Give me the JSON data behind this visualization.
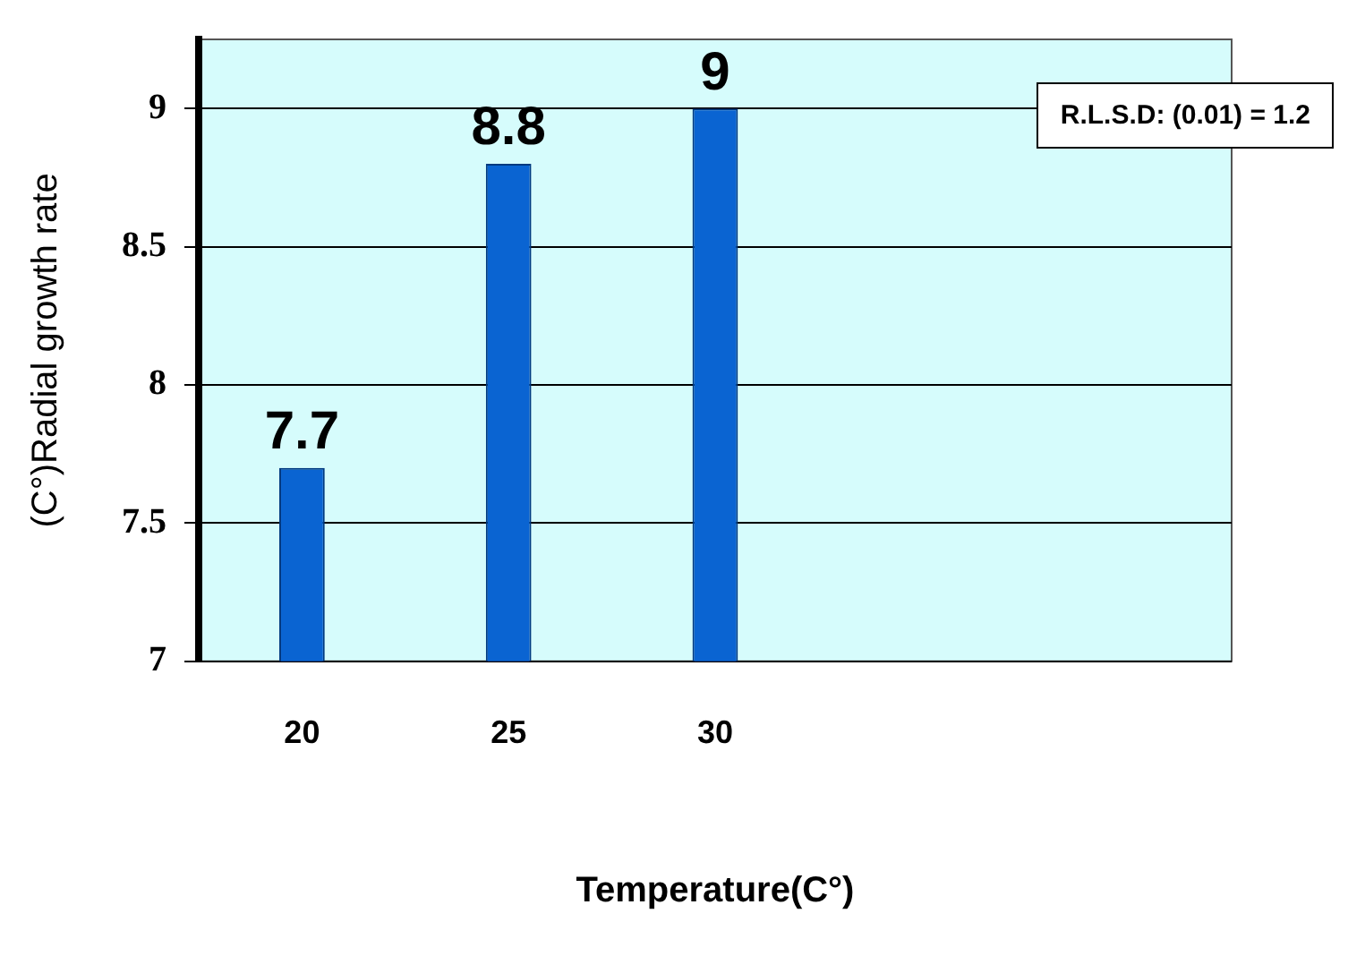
{
  "chart_data": {
    "type": "bar",
    "xlabel": "Temperature(C°)",
    "ylabel": "(C°)Radial growth rate",
    "categories": [
      "20",
      "25",
      "30",
      null,
      null
    ],
    "values": [
      7.7,
      8.8,
      9,
      null,
      null
    ],
    "color": "#0a64d2",
    "ylim": [
      7,
      9.25
    ],
    "yticks": [
      7,
      7.5,
      8,
      8.5,
      9
    ],
    "grid": "y",
    "data_labels": true,
    "annotations": [
      "R.L.S.D: (0.01) = 1.2"
    ]
  }
}
